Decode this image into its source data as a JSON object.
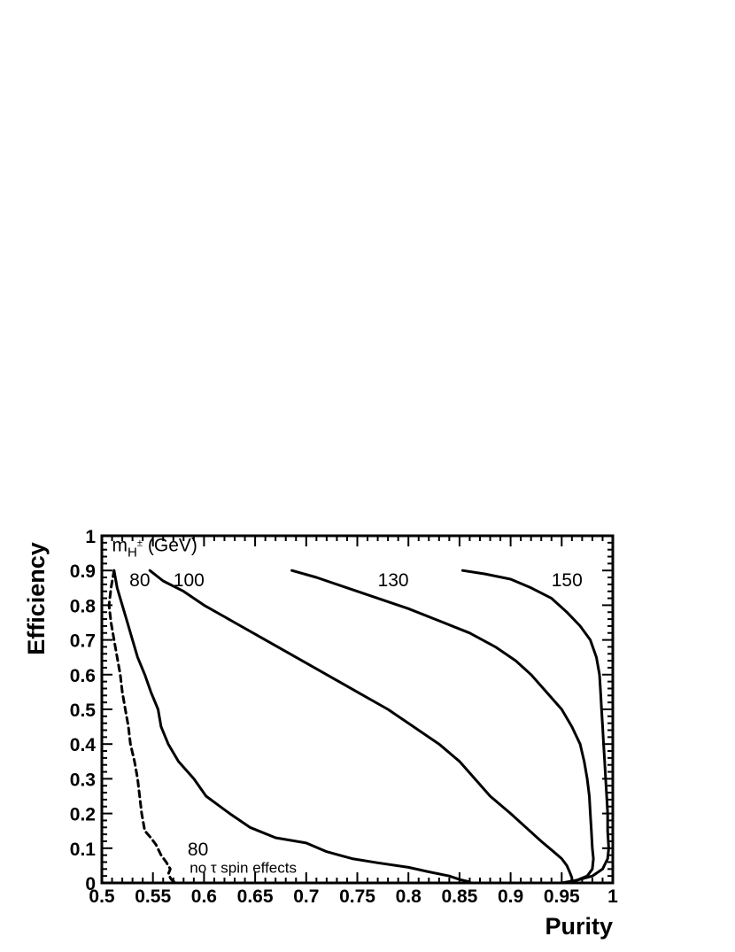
{
  "chart_data": {
    "type": "line",
    "xlabel": "Purity",
    "ylabel": "Efficiency",
    "xlim": [
      0.5,
      1.0
    ],
    "ylim": [
      0.0,
      1.0
    ],
    "x_ticks": [
      "0.5",
      "0.55",
      "0.6",
      "0.65",
      "0.7",
      "0.75",
      "0.8",
      "0.85",
      "0.9",
      "0.95",
      "1"
    ],
    "y_ticks": [
      "0",
      "0.1",
      "0.2",
      "0.3",
      "0.4",
      "0.5",
      "0.6",
      "0.7",
      "0.8",
      "0.9",
      "1"
    ],
    "grid": false,
    "legend_title": "(GeV)",
    "legend_title_var": "m",
    "legend_title_sub": "H",
    "legend_title_sup": "±",
    "series": [
      {
        "name": "80",
        "style": "solid",
        "points": [
          [
            0.512,
            0.9
          ],
          [
            0.515,
            0.85
          ],
          [
            0.52,
            0.8
          ],
          [
            0.525,
            0.75
          ],
          [
            0.53,
            0.7
          ],
          [
            0.535,
            0.65
          ],
          [
            0.542,
            0.6
          ],
          [
            0.548,
            0.55
          ],
          [
            0.555,
            0.5
          ],
          [
            0.558,
            0.45
          ],
          [
            0.565,
            0.4
          ],
          [
            0.575,
            0.35
          ],
          [
            0.59,
            0.3
          ],
          [
            0.602,
            0.25
          ],
          [
            0.625,
            0.2
          ],
          [
            0.645,
            0.16
          ],
          [
            0.67,
            0.13
          ],
          [
            0.7,
            0.115
          ],
          [
            0.72,
            0.09
          ],
          [
            0.745,
            0.07
          ],
          [
            0.77,
            0.058
          ],
          [
            0.8,
            0.045
          ],
          [
            0.82,
            0.032
          ],
          [
            0.84,
            0.02
          ],
          [
            0.85,
            0.01
          ],
          [
            0.86,
            0.003
          ]
        ]
      },
      {
        "name": "100",
        "style": "solid",
        "points": [
          [
            0.547,
            0.9
          ],
          [
            0.56,
            0.87
          ],
          [
            0.58,
            0.84
          ],
          [
            0.6,
            0.8
          ],
          [
            0.63,
            0.75
          ],
          [
            0.66,
            0.7
          ],
          [
            0.69,
            0.65
          ],
          [
            0.72,
            0.6
          ],
          [
            0.75,
            0.55
          ],
          [
            0.78,
            0.5
          ],
          [
            0.805,
            0.45
          ],
          [
            0.83,
            0.4
          ],
          [
            0.85,
            0.35
          ],
          [
            0.865,
            0.3
          ],
          [
            0.88,
            0.25
          ],
          [
            0.9,
            0.2
          ],
          [
            0.915,
            0.16
          ],
          [
            0.93,
            0.12
          ],
          [
            0.942,
            0.09
          ],
          [
            0.95,
            0.07
          ],
          [
            0.955,
            0.05
          ],
          [
            0.958,
            0.03
          ],
          [
            0.96,
            0.015
          ],
          [
            0.96,
            0.0
          ]
        ]
      },
      {
        "name": "130",
        "style": "solid",
        "points": [
          [
            0.686,
            0.9
          ],
          [
            0.71,
            0.88
          ],
          [
            0.74,
            0.85
          ],
          [
            0.77,
            0.82
          ],
          [
            0.8,
            0.79
          ],
          [
            0.83,
            0.755
          ],
          [
            0.86,
            0.72
          ],
          [
            0.885,
            0.68
          ],
          [
            0.905,
            0.64
          ],
          [
            0.92,
            0.6
          ],
          [
            0.935,
            0.55
          ],
          [
            0.95,
            0.5
          ],
          [
            0.96,
            0.45
          ],
          [
            0.968,
            0.4
          ],
          [
            0.972,
            0.35
          ],
          [
            0.975,
            0.3
          ],
          [
            0.977,
            0.25
          ],
          [
            0.978,
            0.2
          ],
          [
            0.979,
            0.15
          ],
          [
            0.98,
            0.1
          ],
          [
            0.981,
            0.07
          ],
          [
            0.98,
            0.04
          ],
          [
            0.975,
            0.02
          ],
          [
            0.965,
            0.008
          ],
          [
            0.955,
            0.0
          ]
        ]
      },
      {
        "name": "150",
        "style": "solid",
        "points": [
          [
            0.853,
            0.9
          ],
          [
            0.875,
            0.89
          ],
          [
            0.9,
            0.875
          ],
          [
            0.92,
            0.85
          ],
          [
            0.94,
            0.82
          ],
          [
            0.955,
            0.78
          ],
          [
            0.968,
            0.74
          ],
          [
            0.978,
            0.7
          ],
          [
            0.984,
            0.65
          ],
          [
            0.987,
            0.6
          ],
          [
            0.988,
            0.55
          ],
          [
            0.989,
            0.5
          ],
          [
            0.99,
            0.45
          ],
          [
            0.991,
            0.4
          ],
          [
            0.992,
            0.35
          ],
          [
            0.993,
            0.3
          ],
          [
            0.994,
            0.25
          ],
          [
            0.995,
            0.2
          ],
          [
            0.995,
            0.15
          ],
          [
            0.996,
            0.1
          ],
          [
            0.995,
            0.07
          ],
          [
            0.99,
            0.04
          ],
          [
            0.98,
            0.02
          ],
          [
            0.965,
            0.008
          ],
          [
            0.95,
            0.0
          ]
        ]
      },
      {
        "name": "80",
        "style": "dashed",
        "points": [
          [
            0.512,
            0.9
          ],
          [
            0.509,
            0.85
          ],
          [
            0.507,
            0.8
          ],
          [
            0.509,
            0.75
          ],
          [
            0.512,
            0.7
          ],
          [
            0.515,
            0.65
          ],
          [
            0.518,
            0.6
          ],
          [
            0.52,
            0.55
          ],
          [
            0.523,
            0.5
          ],
          [
            0.526,
            0.45
          ],
          [
            0.528,
            0.4
          ],
          [
            0.532,
            0.35
          ],
          [
            0.535,
            0.3
          ],
          [
            0.537,
            0.25
          ],
          [
            0.539,
            0.2
          ],
          [
            0.542,
            0.15
          ],
          [
            0.548,
            0.13
          ],
          [
            0.553,
            0.11
          ],
          [
            0.558,
            0.08
          ],
          [
            0.563,
            0.06
          ],
          [
            0.567,
            0.04
          ],
          [
            0.565,
            0.025
          ],
          [
            0.568,
            0.01
          ],
          [
            0.572,
            0.0
          ]
        ]
      }
    ],
    "annotations": [
      {
        "text": "80",
        "x": 0.527,
        "y": 0.875
      },
      {
        "text": "100",
        "x": 0.57,
        "y": 0.875
      },
      {
        "text": "130",
        "x": 0.77,
        "y": 0.875
      },
      {
        "text": "150",
        "x": 0.94,
        "y": 0.875
      },
      {
        "text": "80",
        "x": 0.584,
        "y": 0.1
      },
      {
        "text": "no τ spin effects",
        "x": 0.586,
        "y": 0.05
      }
    ]
  }
}
